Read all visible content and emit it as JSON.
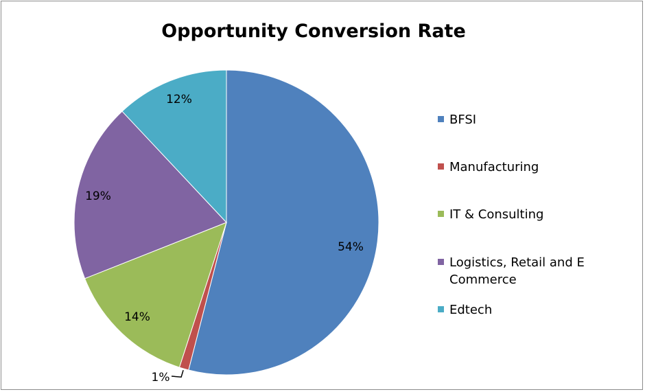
{
  "chart_data": {
    "type": "pie",
    "title": "Opportunity Conversion Rate",
    "categories": [
      "BFSI",
      "Manufacturing",
      "IT & Consulting",
      "Logistics, Retail and E Commerce",
      "Edtech"
    ],
    "values": [
      54,
      1,
      14,
      19,
      12
    ],
    "data_labels": [
      "54%",
      "1%",
      "14%",
      "19%",
      "12%"
    ],
    "colors": [
      "#4F81BD",
      "#C0504D",
      "#9BBB59",
      "#8064A2",
      "#4BACC6"
    ],
    "legend_position": "right"
  }
}
